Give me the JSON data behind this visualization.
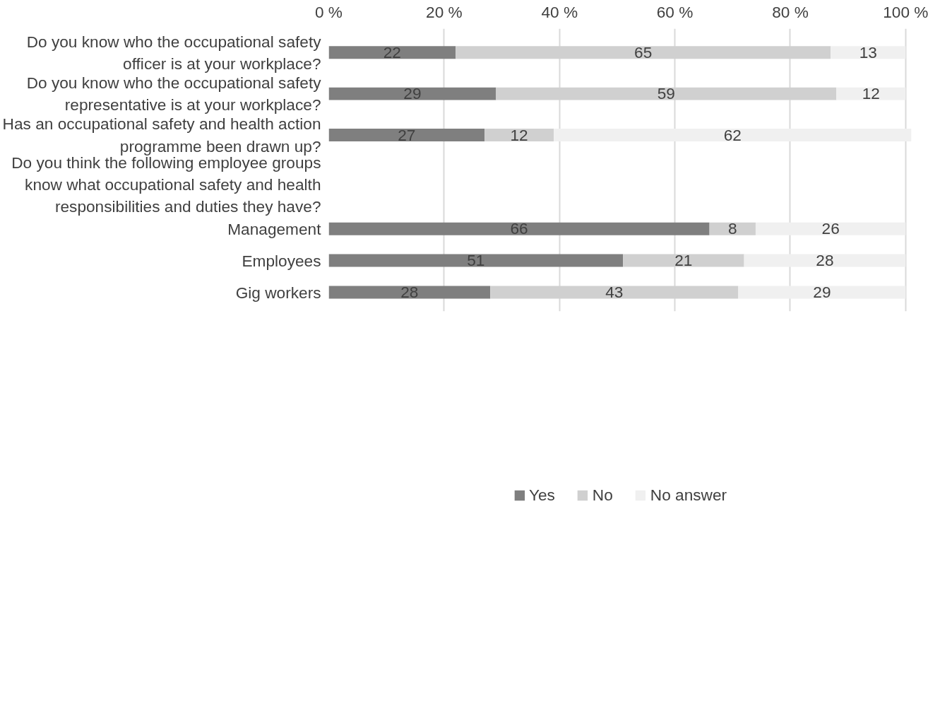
{
  "chart_data": {
    "type": "bar",
    "orientation": "horizontal",
    "stacked": true,
    "data_labels": true,
    "grid": "x",
    "legend": "bottom",
    "categories": [
      "Do you know who the occupational safety officer is at your workplace?",
      "Do you know who the occupational safety representative is at your workplace?",
      "Has an occupational safety and health action programme been drawn up?",
      "Do you think the following employee groups know what occupational safety and health responsibilities and duties they have?",
      "Management",
      "Employees",
      "Gig workers"
    ],
    "xlim": [
      0,
      101
    ],
    "xticks": [
      {
        "value": 0,
        "label": "0 %"
      },
      {
        "value": 20,
        "label": "20 %"
      },
      {
        "value": 40,
        "label": "40 %"
      },
      {
        "value": 60,
        "label": "60 %"
      },
      {
        "value": 80,
        "label": "80 %"
      },
      {
        "value": 100,
        "label": "100 %"
      }
    ],
    "series": [
      {
        "name": "Yes",
        "color": "#7f7f7f",
        "values": [
          22,
          29,
          27,
          null,
          66,
          51,
          28
        ]
      },
      {
        "name": "No",
        "color": "#d0d0d0",
        "values": [
          65,
          59,
          12,
          null,
          8,
          21,
          43
        ]
      },
      {
        "name": "No answer",
        "color": "#f0f0f0",
        "values": [
          13,
          12,
          62,
          null,
          26,
          28,
          29
        ]
      }
    ]
  }
}
